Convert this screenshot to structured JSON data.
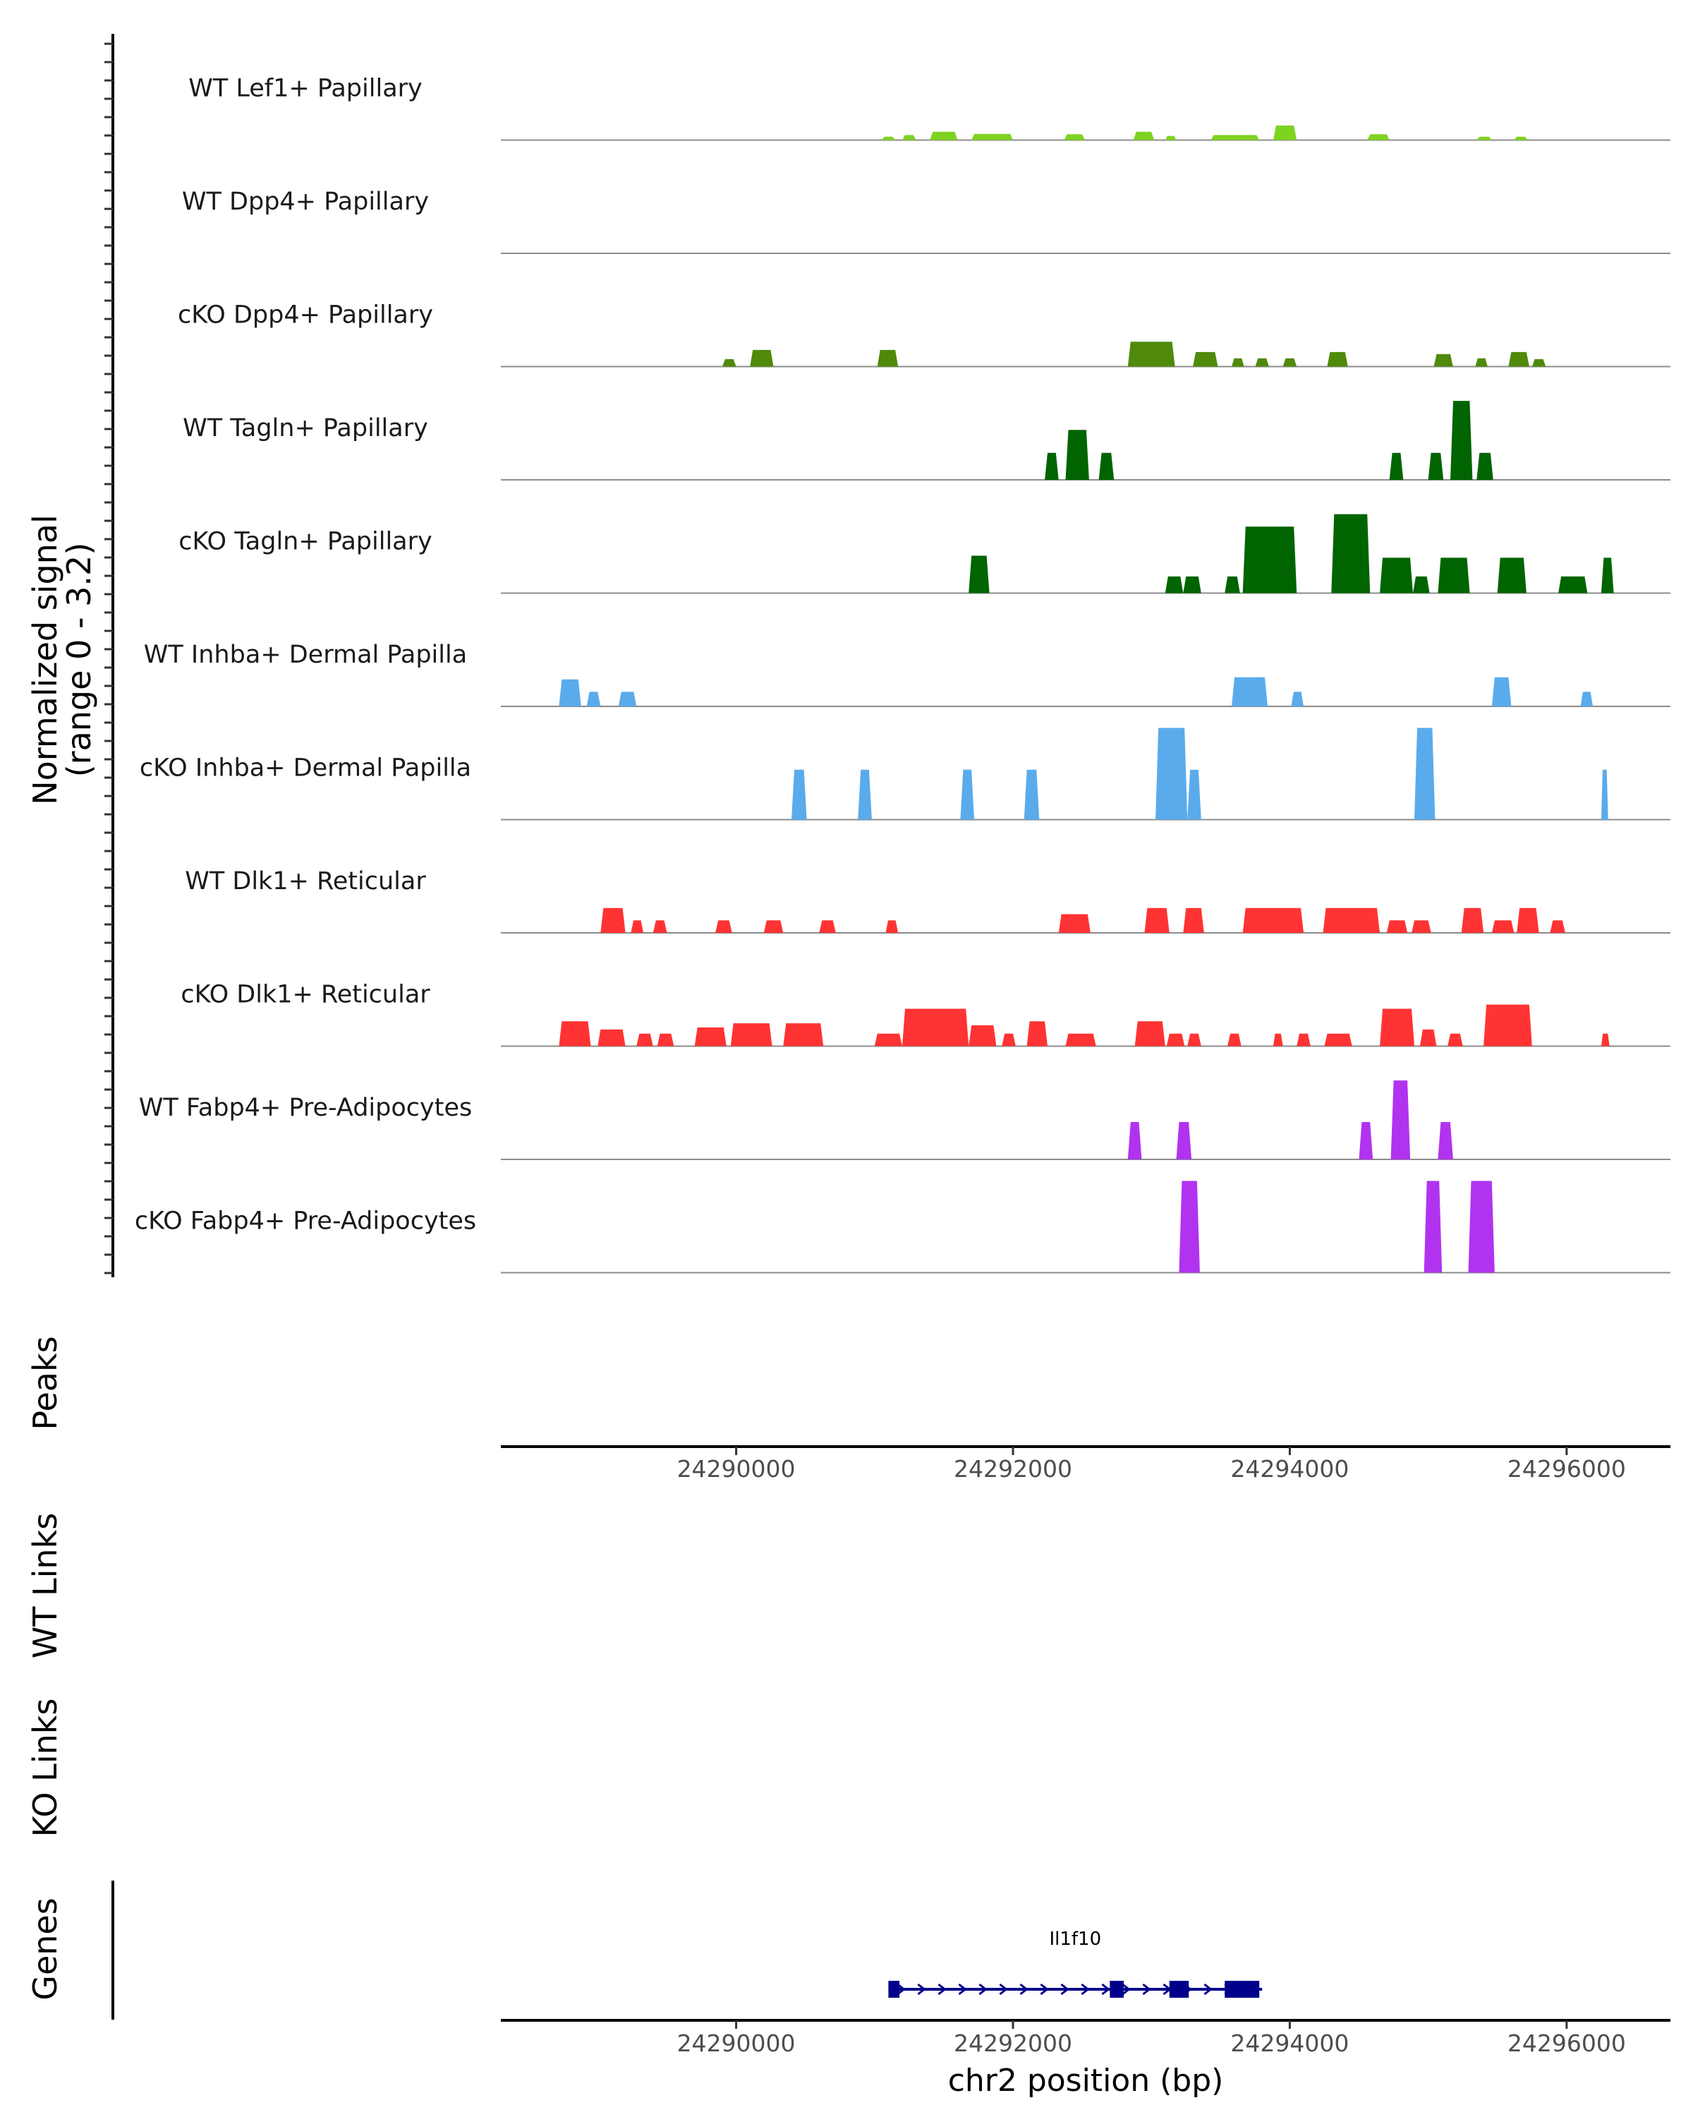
{
  "chart_data": {
    "type": "area",
    "title": "",
    "signal_axis_label": [
      "Normalized signal",
      "(range 0 - 3.2)"
    ],
    "signal_range": [
      0,
      3.2
    ],
    "xlabel": "chr2 position (bp)",
    "xlim": [
      24288300,
      24296750
    ],
    "x_ticks": [
      24290000,
      24292000,
      24294000,
      24296000
    ],
    "x_tick_labels": [
      "24290000",
      "24292000",
      "24294000",
      "24296000"
    ],
    "panel_labels": {
      "peaks": "Peaks",
      "wt_links": "WT Links",
      "ko_links": "KO Links",
      "genes": "Genes"
    },
    "tracks": [
      {
        "name": "WT Lef1+ Papillary",
        "color": "#7ed321",
        "peaks": [
          [
            24291050,
            24291150,
            0.08
          ],
          [
            24291200,
            24291300,
            0.12
          ],
          [
            24291400,
            24291600,
            0.2
          ],
          [
            24291700,
            24292000,
            0.15
          ],
          [
            24292370,
            24292520,
            0.14
          ],
          [
            24292870,
            24293020,
            0.2
          ],
          [
            24293100,
            24293180,
            0.1
          ],
          [
            24293430,
            24293780,
            0.12
          ],
          [
            24293880,
            24294050,
            0.35
          ],
          [
            24294560,
            24294720,
            0.14
          ],
          [
            24295350,
            24295460,
            0.08
          ],
          [
            24295620,
            24295720,
            0.08
          ]
        ]
      },
      {
        "name": "WT Dpp4+ Papillary",
        "color": "#5e9e0f",
        "peaks": []
      },
      {
        "name": "cKO Dpp4+ Papillary",
        "color": "#4f8a0b",
        "peaks": [
          [
            24289900,
            24290000,
            0.18
          ],
          [
            24290100,
            24290270,
            0.4
          ],
          [
            24291020,
            24291170,
            0.4
          ],
          [
            24292830,
            24293170,
            0.6
          ],
          [
            24293300,
            24293480,
            0.35
          ],
          [
            24293580,
            24293670,
            0.2
          ],
          [
            24293750,
            24293850,
            0.2
          ],
          [
            24293950,
            24294050,
            0.2
          ],
          [
            24294270,
            24294420,
            0.35
          ],
          [
            24295040,
            24295180,
            0.3
          ],
          [
            24295340,
            24295430,
            0.2
          ],
          [
            24295580,
            24295730,
            0.35
          ],
          [
            24295750,
            24295850,
            0.18
          ]
        ]
      },
      {
        "name": "WT Tagln+ Papillary",
        "color": "#006400",
        "peaks": [
          [
            24292230,
            24292330,
            0.65
          ],
          [
            24292380,
            24292550,
            1.2
          ],
          [
            24292620,
            24292730,
            0.65
          ],
          [
            24294720,
            24294820,
            0.65
          ],
          [
            24295000,
            24295110,
            0.65
          ],
          [
            24295160,
            24295320,
            1.9
          ],
          [
            24295350,
            24295470,
            0.65
          ]
        ]
      },
      {
        "name": "cKO Tagln+ Papillary",
        "color": "#006400",
        "peaks": [
          [
            24291680,
            24291830,
            0.9
          ],
          [
            24293100,
            24293230,
            0.4
          ],
          [
            24293230,
            24293360,
            0.4
          ],
          [
            24293530,
            24293640,
            0.4
          ],
          [
            24293660,
            24294050,
            1.6
          ],
          [
            24294300,
            24294580,
            1.9
          ],
          [
            24294650,
            24294890,
            0.85
          ],
          [
            24294890,
            24295010,
            0.4
          ],
          [
            24295070,
            24295300,
            0.85
          ],
          [
            24295500,
            24295710,
            0.85
          ],
          [
            24295940,
            24296150,
            0.4
          ],
          [
            24296250,
            24296340,
            0.85
          ]
        ]
      },
      {
        "name": "WT Inhba+ Dermal Papilla",
        "color": "#5aabeb",
        "peaks": [
          [
            24288720,
            24288880,
            0.65
          ],
          [
            24288920,
            24289020,
            0.35
          ],
          [
            24289150,
            24289280,
            0.35
          ],
          [
            24293580,
            24293840,
            0.7
          ],
          [
            24294010,
            24294100,
            0.35
          ],
          [
            24295460,
            24295600,
            0.7
          ],
          [
            24296100,
            24296190,
            0.35
          ]
        ]
      },
      {
        "name": "cKO Inhba+ Dermal Papilla",
        "color": "#5aabeb",
        "peaks": [
          [
            24290400,
            24290510,
            1.2
          ],
          [
            24290880,
            24290980,
            1.2
          ],
          [
            24291620,
            24291720,
            1.2
          ],
          [
            24292080,
            24292190,
            1.2
          ],
          [
            24293030,
            24293260,
            2.4
          ],
          [
            24293260,
            24293360,
            1.2
          ],
          [
            24294900,
            24295050,
            2.4
          ],
          [
            24296250,
            24296300,
            1.2
          ]
        ]
      },
      {
        "name": "WT Dlk1+ Reticular",
        "color": "#ff3333",
        "peaks": [
          [
            24289020,
            24289200,
            0.6
          ],
          [
            24289240,
            24289330,
            0.3
          ],
          [
            24289400,
            24289500,
            0.3
          ],
          [
            24289850,
            24289970,
            0.3
          ],
          [
            24290200,
            24290340,
            0.3
          ],
          [
            24290600,
            24290720,
            0.3
          ],
          [
            24291080,
            24291170,
            0.3
          ],
          [
            24292330,
            24292560,
            0.45
          ],
          [
            24292950,
            24293130,
            0.6
          ],
          [
            24293230,
            24293380,
            0.6
          ],
          [
            24293660,
            24294100,
            0.6
          ],
          [
            24294240,
            24294650,
            0.6
          ],
          [
            24294700,
            24294850,
            0.3
          ],
          [
            24294880,
            24295020,
            0.3
          ],
          [
            24295240,
            24295400,
            0.6
          ],
          [
            24295460,
            24295620,
            0.3
          ],
          [
            24295640,
            24295800,
            0.6
          ],
          [
            24295880,
            24295990,
            0.3
          ]
        ]
      },
      {
        "name": "cKO Dlk1+ Reticular",
        "color": "#ff3333",
        "peaks": [
          [
            24288720,
            24288950,
            0.6
          ],
          [
            24289000,
            24289200,
            0.4
          ],
          [
            24289280,
            24289400,
            0.3
          ],
          [
            24289430,
            24289550,
            0.3
          ],
          [
            24289700,
            24289930,
            0.45
          ],
          [
            24289960,
            24290260,
            0.55
          ],
          [
            24290340,
            24290630,
            0.55
          ],
          [
            24291000,
            24291200,
            0.3
          ],
          [
            24291200,
            24291680,
            0.9
          ],
          [
            24291680,
            24291880,
            0.5
          ],
          [
            24291920,
            24292020,
            0.3
          ],
          [
            24292100,
            24292250,
            0.6
          ],
          [
            24292380,
            24292600,
            0.3
          ],
          [
            24292880,
            24293100,
            0.6
          ],
          [
            24293110,
            24293240,
            0.3
          ],
          [
            24293260,
            24293360,
            0.3
          ],
          [
            24293550,
            24293650,
            0.3
          ],
          [
            24293880,
            24293950,
            0.3
          ],
          [
            24294050,
            24294150,
            0.3
          ],
          [
            24294250,
            24294450,
            0.3
          ],
          [
            24294650,
            24294900,
            0.9
          ],
          [
            24294940,
            24295060,
            0.4
          ],
          [
            24295140,
            24295250,
            0.3
          ],
          [
            24295400,
            24295750,
            1.0
          ],
          [
            24296250,
            24296310,
            0.3
          ]
        ]
      },
      {
        "name": "WT Fabp4+ Pre-Adipocytes",
        "color": "#b133f0",
        "peaks": [
          [
            24292830,
            24292930,
            0.9
          ],
          [
            24293180,
            24293290,
            0.9
          ],
          [
            24294500,
            24294600,
            0.9
          ],
          [
            24294730,
            24294870,
            1.9
          ],
          [
            24295070,
            24295180,
            0.9
          ]
        ]
      },
      {
        "name": "cKO Fabp4+ Pre-Adipocytes",
        "color": "#b133f0",
        "peaks": [
          [
            24293200,
            24293350,
            2.4
          ],
          [
            24294970,
            24295100,
            2.4
          ],
          [
            24295290,
            24295480,
            2.3
          ]
        ]
      }
    ],
    "gene": {
      "name": "Il1f10",
      "start": 24291100,
      "end": 24293800,
      "color": "#00008b",
      "exons": [
        [
          24291100,
          24291180
        ],
        [
          24292700,
          24292800
        ],
        [
          24293130,
          24293270
        ],
        [
          24293530,
          24293780
        ]
      ]
    }
  }
}
